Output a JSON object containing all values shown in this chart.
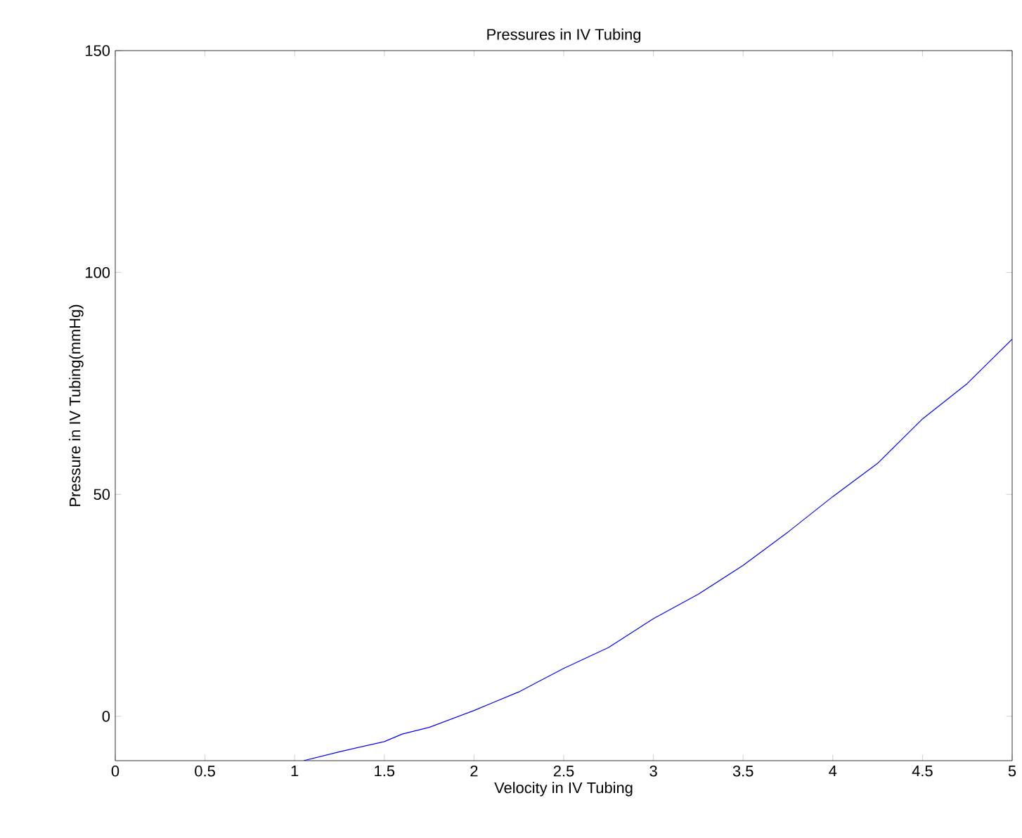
{
  "chart_data": {
    "type": "line",
    "title": "Pressures in  IV Tubing",
    "xlabel": "Velocity in IV Tubing",
    "ylabel": "Pressure in IV Tubing(mmHg)",
    "xlim": [
      0,
      5
    ],
    "ylim": [
      -10,
      150
    ],
    "xticks": [
      0,
      0.5,
      1,
      1.5,
      2,
      2.5,
      3,
      3.5,
      4,
      4.5,
      5
    ],
    "yticks": [
      0,
      50,
      100,
      150
    ],
    "grid": false,
    "series": [
      {
        "color": "#0000ff",
        "x": [
          1.05,
          1.25,
          1.5,
          1.6,
          1.75,
          2,
          2.1,
          2.25,
          2.5,
          2.75,
          3,
          3.25,
          3.5,
          3.75,
          4,
          4.25,
          4.5,
          4.75,
          5
        ],
        "values": [
          -10,
          -8,
          -5.7,
          -4,
          -2.5,
          1.3,
          3,
          5.5,
          10.8,
          15.5,
          22,
          27.5,
          34,
          41.5,
          49.5,
          57,
          67,
          75,
          85
        ]
      }
    ]
  }
}
